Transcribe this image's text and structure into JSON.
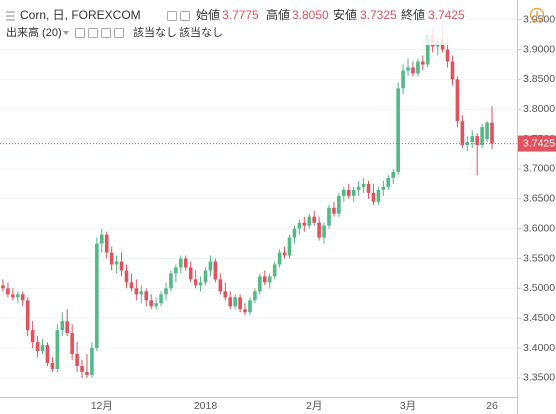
{
  "chart_data": {
    "type": "candlestick",
    "header": {
      "symbol": "Corn, 日, FOREXCOM",
      "ohlc": [
        {
          "label": "始値",
          "value": "3.7775"
        },
        {
          "label": "高値",
          "value": "3.8050"
        },
        {
          "label": "安値",
          "value": "3.7325"
        },
        {
          "label": "終値",
          "value": "3.7425"
        }
      ],
      "volume": "出来高 (20)",
      "volume_values": [
        "該当なし",
        "該当なし"
      ]
    },
    "categories": [
      null,
      null,
      null,
      null,
      null,
      null,
      null,
      null,
      null,
      null,
      null,
      null,
      null,
      null,
      null,
      null,
      null,
      null,
      null,
      null,
      "12月",
      null,
      null,
      null,
      null,
      null,
      null,
      null,
      null,
      null,
      null,
      null,
      null,
      null,
      null,
      null,
      null,
      null,
      null,
      null,
      null,
      "2018",
      null,
      null,
      null,
      null,
      null,
      null,
      null,
      null,
      null,
      null,
      null,
      null,
      null,
      null,
      null,
      null,
      null,
      null,
      null,
      null,
      null,
      "2月",
      null,
      null,
      null,
      null,
      null,
      null,
      null,
      null,
      null,
      null,
      null,
      null,
      null,
      null,
      null,
      null,
      null,
      null,
      "3月",
      null,
      null,
      null,
      null,
      null,
      null,
      null,
      null,
      null,
      null,
      null,
      null,
      null,
      null,
      null,
      null,
      "26"
    ],
    "open": [
      3.505,
      3.5,
      3.49,
      3.485,
      3.49,
      3.48,
      3.43,
      3.41,
      3.395,
      3.405,
      3.375,
      3.365,
      3.43,
      3.445,
      3.425,
      3.39,
      3.37,
      3.36,
      3.355,
      3.4,
      3.575,
      3.59,
      3.56,
      3.54,
      3.545,
      3.53,
      3.51,
      3.5,
      3.49,
      3.495,
      3.48,
      3.47,
      3.475,
      3.49,
      3.5,
      3.525,
      3.535,
      3.55,
      3.535,
      3.515,
      3.505,
      3.51,
      3.53,
      3.545,
      3.515,
      3.495,
      3.485,
      3.47,
      3.485,
      3.465,
      3.46,
      3.48,
      3.495,
      3.52,
      3.51,
      3.52,
      3.54,
      3.56,
      3.555,
      3.585,
      3.6,
      3.61,
      3.605,
      3.62,
      3.61,
      3.585,
      3.605,
      3.635,
      3.625,
      3.655,
      3.665,
      3.655,
      3.665,
      3.67,
      3.675,
      3.66,
      3.645,
      3.665,
      3.67,
      3.685,
      3.695,
      3.835,
      3.865,
      3.87,
      3.86,
      3.88,
      3.875,
      3.925,
      3.905,
      3.915,
      3.9,
      3.88,
      3.85,
      3.78,
      3.74,
      3.745,
      3.755,
      3.74,
      3.75,
      3.7775
    ],
    "high": [
      3.515,
      3.51,
      3.5,
      3.495,
      3.495,
      3.485,
      3.445,
      3.42,
      3.415,
      3.41,
      3.385,
      3.44,
      3.46,
      3.465,
      3.44,
      3.41,
      3.38,
      3.39,
      3.41,
      3.585,
      3.6,
      3.595,
      3.57,
      3.555,
      3.56,
      3.54,
      3.525,
      3.515,
      3.505,
      3.5,
      3.49,
      3.485,
      3.495,
      3.51,
      3.53,
      3.54,
      3.555,
      3.555,
      3.545,
      3.53,
      3.52,
      3.535,
      3.555,
      3.55,
      3.525,
      3.51,
      3.495,
      3.49,
      3.49,
      3.475,
      3.485,
      3.5,
      3.525,
      3.53,
      3.525,
      3.545,
      3.565,
      3.57,
      3.59,
      3.605,
      3.615,
      3.62,
      3.625,
      3.63,
      3.62,
      3.61,
      3.64,
      3.645,
      3.66,
      3.67,
      3.675,
      3.67,
      3.68,
      3.685,
      3.68,
      3.675,
      3.67,
      3.68,
      3.69,
      3.7,
      3.845,
      3.875,
      3.885,
      3.88,
      3.885,
      3.89,
      3.935,
      3.935,
      3.925,
      3.94,
      3.92,
      3.89,
      3.855,
      3.79,
      3.755,
      3.765,
      3.76,
      3.775,
      3.78,
      3.805
    ],
    "low": [
      3.495,
      3.485,
      3.48,
      3.475,
      3.47,
      3.42,
      3.4,
      3.385,
      3.39,
      3.37,
      3.36,
      3.36,
      3.42,
      3.42,
      3.38,
      3.36,
      3.35,
      3.35,
      3.35,
      3.395,
      3.56,
      3.55,
      3.53,
      3.525,
      3.52,
      3.5,
      3.495,
      3.48,
      3.475,
      3.47,
      3.465,
      3.465,
      3.47,
      3.48,
      3.495,
      3.51,
      3.525,
      3.53,
      3.51,
      3.5,
      3.495,
      3.505,
      3.52,
      3.51,
      3.49,
      3.48,
      3.465,
      3.465,
      3.46,
      3.455,
      3.455,
      3.475,
      3.49,
      3.505,
      3.5,
      3.515,
      3.535,
      3.55,
      3.55,
      3.575,
      3.59,
      3.595,
      3.6,
      3.605,
      3.58,
      3.575,
      3.6,
      3.62,
      3.62,
      3.645,
      3.65,
      3.645,
      3.655,
      3.66,
      3.65,
      3.64,
      3.64,
      3.655,
      3.665,
      3.675,
      3.69,
      3.825,
      3.855,
      3.855,
      3.855,
      3.865,
      3.87,
      3.895,
      3.89,
      3.895,
      3.87,
      3.84,
      3.77,
      3.735,
      3.73,
      3.735,
      3.69,
      3.735,
      3.745,
      3.7325
    ],
    "close": [
      3.5,
      3.49,
      3.485,
      3.49,
      3.48,
      3.43,
      3.41,
      3.395,
      3.405,
      3.375,
      3.365,
      3.43,
      3.445,
      3.425,
      3.39,
      3.37,
      3.36,
      3.355,
      3.4,
      3.575,
      3.59,
      3.56,
      3.54,
      3.545,
      3.53,
      3.51,
      3.5,
      3.49,
      3.495,
      3.48,
      3.47,
      3.475,
      3.49,
      3.5,
      3.525,
      3.535,
      3.55,
      3.535,
      3.515,
      3.505,
      3.51,
      3.53,
      3.545,
      3.515,
      3.495,
      3.485,
      3.47,
      3.485,
      3.465,
      3.46,
      3.48,
      3.495,
      3.52,
      3.51,
      3.52,
      3.54,
      3.56,
      3.555,
      3.585,
      3.6,
      3.61,
      3.605,
      3.62,
      3.61,
      3.585,
      3.605,
      3.635,
      3.625,
      3.655,
      3.665,
      3.655,
      3.665,
      3.67,
      3.675,
      3.66,
      3.645,
      3.665,
      3.67,
      3.685,
      3.695,
      3.835,
      3.865,
      3.87,
      3.86,
      3.88,
      3.875,
      3.925,
      3.905,
      3.915,
      3.9,
      3.88,
      3.85,
      3.78,
      3.74,
      3.745,
      3.755,
      3.74,
      3.77,
      3.7775,
      3.7425
    ],
    "up_color": "#53b987",
    "down_color": "#e0525e",
    "ylim": [
      3.318,
      3.983
    ],
    "yticks": [
      {
        "value": 3.35,
        "label": "3.3500"
      },
      {
        "value": 3.4,
        "label": "3.4000"
      },
      {
        "value": 3.45,
        "label": "3.4500"
      },
      {
        "value": 3.5,
        "label": "3.5000"
      },
      {
        "value": 3.55,
        "label": "3.5500"
      },
      {
        "value": 3.6,
        "label": "3.6000"
      },
      {
        "value": 3.65,
        "label": "3.6500"
      },
      {
        "value": 3.7,
        "label": "3.7000"
      },
      {
        "value": 3.75,
        "label": "3.7500"
      },
      {
        "value": 3.8,
        "label": "3.8000"
      },
      {
        "value": 3.85,
        "label": "3.8500"
      },
      {
        "value": 3.9,
        "label": "3.9000"
      },
      {
        "value": 3.95,
        "label": "3.9500"
      }
    ],
    "grid": true
  }
}
